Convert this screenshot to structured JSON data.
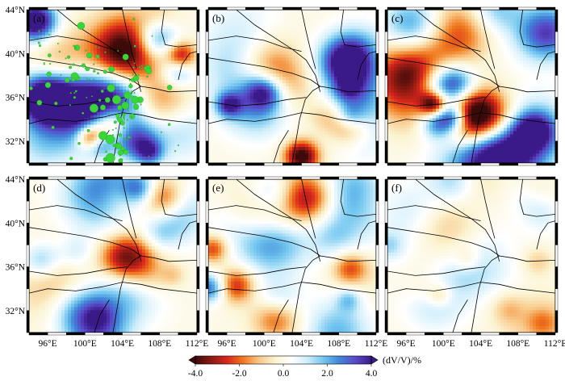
{
  "chart_data": {
    "type": "heatmap",
    "description_free": true,
    "panels": [
      {
        "label": "(a)",
        "has_events": true,
        "seed": 11,
        "amp": 1.25
      },
      {
        "label": "(b)",
        "has_events": false,
        "seed": 23,
        "amp": 1.0
      },
      {
        "label": "(c)",
        "has_events": false,
        "seed": 37,
        "amp": 0.95
      },
      {
        "label": "(d)",
        "has_events": false,
        "seed": 41,
        "amp": 0.75
      },
      {
        "label": "(e)",
        "has_events": false,
        "seed": 53,
        "amp": 0.7
      },
      {
        "label": "(f)",
        "has_events": false,
        "seed": 67,
        "amp": 0.35
      }
    ],
    "x_ticks": [
      "96°E",
      "100°E",
      "104°E",
      "108°E",
      "112°E"
    ],
    "x_tick_values": [
      96,
      100,
      104,
      108,
      112
    ],
    "y_ticks": [
      "44°N",
      "40°N",
      "36°N",
      "32°N"
    ],
    "y_tick_values": [
      44,
      40,
      36,
      32
    ],
    "xlim": [
      94,
      112
    ],
    "ylim": [
      30,
      44
    ],
    "colorbar": {
      "label": "(dV/V)/%",
      "ticks": [
        "-4.0",
        "-2.0",
        "0.0",
        "2.0",
        "4.0"
      ],
      "tick_values": [
        -4,
        -2,
        0,
        2,
        4
      ],
      "range": [
        -4,
        4
      ],
      "colors": [
        "#3d0a0a",
        "#8b1a12",
        "#d9261c",
        "#f07a1e",
        "#f9c98a",
        "#fbf4d2",
        "#ffffff",
        "#cfeefb",
        "#72c6ef",
        "#3f86d8",
        "#5a49c9",
        "#3a1a88"
      ]
    },
    "event_color": "#39d639",
    "fault_color": "#000000"
  }
}
